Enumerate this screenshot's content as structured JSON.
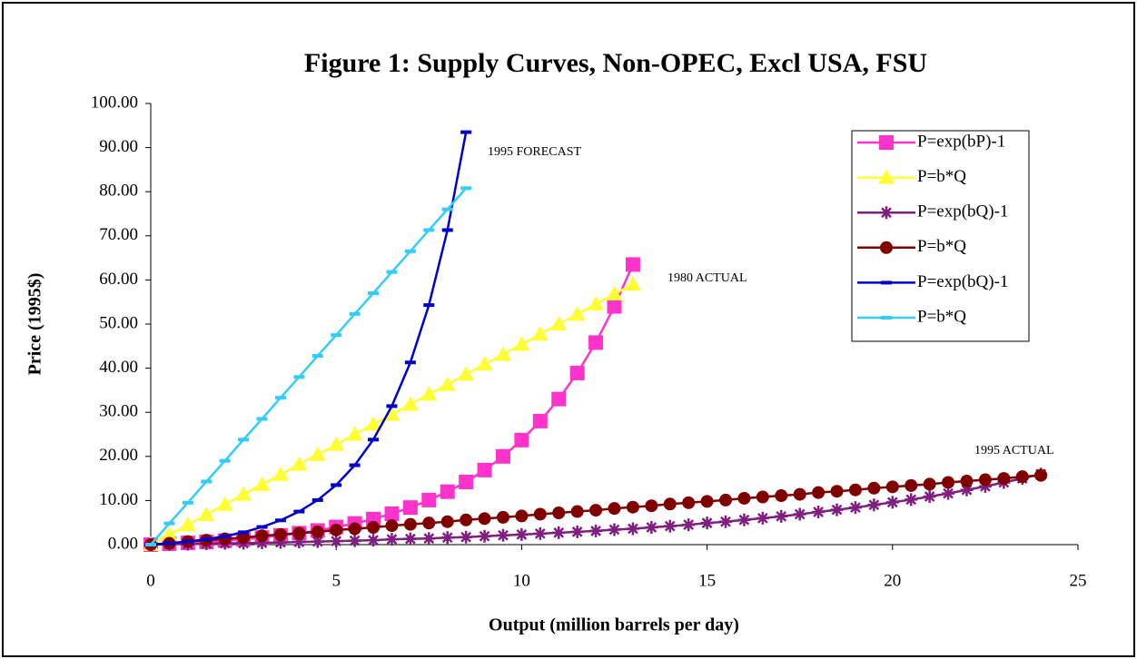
{
  "chart_data": {
    "type": "line",
    "title": "Figure 1: Supply Curves, Non-OPEC, Excl USA, FSU",
    "x_label": "Output (million barrels per day)",
    "y_label": "Price (1995$)",
    "xlim": [
      0,
      25
    ],
    "ylim": [
      0,
      100
    ],
    "xticks": [
      0,
      5,
      10,
      15,
      20,
      25
    ],
    "yticks": [
      {
        "value": 0,
        "label": "0.00"
      },
      {
        "value": 10,
        "label": "10.00"
      },
      {
        "value": 20,
        "label": "20.00"
      },
      {
        "value": 30,
        "label": "30.00"
      },
      {
        "value": 40,
        "label": "40.00"
      },
      {
        "value": 50,
        "label": "50.00"
      },
      {
        "value": 60,
        "label": "60.00"
      },
      {
        "value": 70,
        "label": "70.00"
      },
      {
        "value": 80,
        "label": "80.00"
      },
      {
        "value": 90,
        "label": "90.00"
      },
      {
        "value": 100,
        "label": "100.00"
      }
    ],
    "annotations": [
      "1995 FORECAST",
      "1980 ACTUAL",
      "1995 ACTUAL"
    ],
    "series": [
      {
        "name": "P=exp(bP)-1",
        "color": "#ff33cc",
        "marker": "square",
        "x": [
          0,
          0.5,
          1,
          1.5,
          2,
          2.5,
          3,
          3.5,
          4,
          4.5,
          5,
          5.5,
          6,
          6.5,
          7,
          7.5,
          8,
          8.5,
          9,
          9.5,
          10,
          10.5,
          11,
          11.5,
          12,
          12.5,
          13
        ],
        "values": [
          0,
          0.2,
          0.4,
          0.6,
          0.9,
          1.2,
          1.6,
          2.1,
          2.6,
          3.2,
          4.0,
          4.8,
          5.8,
          7.0,
          8.4,
          10.1,
          12.0,
          14.2,
          16.9,
          20.0,
          23.7,
          28.0,
          33.0,
          38.9,
          45.8,
          54.0,
          63.5
        ]
      },
      {
        "name": "P=b*Q",
        "color": "#ffff33",
        "marker": "triangle",
        "x": [
          0,
          0.5,
          1,
          1.5,
          2,
          2.5,
          3,
          3.5,
          4,
          4.5,
          5,
          5.5,
          6,
          6.5,
          7,
          7.5,
          8,
          8.5,
          9,
          9.5,
          10,
          10.5,
          11,
          11.5,
          12,
          12.5,
          13
        ],
        "values": [
          0,
          2.3,
          4.5,
          6.8,
          9.1,
          11.4,
          13.6,
          15.9,
          18.2,
          20.4,
          22.7,
          25.0,
          27.3,
          29.5,
          31.8,
          34.1,
          36.3,
          38.6,
          40.9,
          43.1,
          45.4,
          47.7,
          50.0,
          52.2,
          54.5,
          56.8,
          59.0
        ]
      },
      {
        "name": "P=exp(bQ)-1",
        "color": "#7f1f7f",
        "marker": "asterisk",
        "x": [
          0,
          0.5,
          1,
          1.5,
          2,
          2.5,
          3,
          3.5,
          4,
          4.5,
          5,
          5.5,
          6,
          6.5,
          7,
          7.5,
          8,
          8.5,
          9,
          9.5,
          10,
          10.5,
          11,
          11.5,
          12,
          12.5,
          13,
          13.5,
          14,
          14.5,
          15,
          15.5,
          16,
          16.5,
          17,
          17.5,
          18,
          18.5,
          19,
          19.5,
          20,
          20.5,
          21,
          21.5,
          22,
          22.5,
          23,
          23.5,
          24
        ],
        "values": [
          0,
          0.1,
          0.1,
          0.2,
          0.3,
          0.3,
          0.4,
          0.5,
          0.6,
          0.7,
          0.8,
          0.9,
          1.0,
          1.2,
          1.3,
          1.4,
          1.6,
          1.7,
          1.9,
          2.1,
          2.3,
          2.5,
          2.7,
          2.9,
          3.1,
          3.4,
          3.6,
          3.9,
          4.2,
          4.5,
          4.9,
          5.2,
          5.6,
          6.0,
          6.4,
          6.9,
          7.4,
          7.9,
          8.4,
          9.0,
          9.6,
          10.2,
          10.9,
          11.6,
          12.4,
          13.2,
          14.1,
          15.0,
          16.0
        ]
      },
      {
        "name": "P=b*Q",
        "color": "#800000",
        "marker": "circle",
        "x": [
          0,
          0.5,
          1,
          1.5,
          2,
          2.5,
          3,
          3.5,
          4,
          4.5,
          5,
          5.5,
          6,
          6.5,
          7,
          7.5,
          8,
          8.5,
          9,
          9.5,
          10,
          10.5,
          11,
          11.5,
          12,
          12.5,
          13,
          13.5,
          14,
          14.5,
          15,
          15.5,
          16,
          16.5,
          17,
          17.5,
          18,
          18.5,
          19,
          19.5,
          20,
          20.5,
          21,
          21.5,
          22,
          22.5,
          23,
          23.5,
          24
        ],
        "values": [
          0,
          0.3,
          0.7,
          1.0,
          1.3,
          1.6,
          2.0,
          2.3,
          2.6,
          2.9,
          3.3,
          3.6,
          3.9,
          4.3,
          4.6,
          4.9,
          5.2,
          5.6,
          5.9,
          6.2,
          6.5,
          6.9,
          7.2,
          7.5,
          7.8,
          8.2,
          8.5,
          8.8,
          9.2,
          9.5,
          9.8,
          10.1,
          10.5,
          10.8,
          11.1,
          11.4,
          11.8,
          12.1,
          12.4,
          12.8,
          13.1,
          13.4,
          13.7,
          14.1,
          14.4,
          14.7,
          15.0,
          15.4,
          15.7
        ]
      },
      {
        "name": "P=exp(bQ)-1",
        "color": "#0000cc",
        "marker": "dash",
        "x": [
          0,
          0.5,
          1,
          1.5,
          2,
          2.5,
          3,
          3.5,
          4,
          4.5,
          5,
          5.5,
          6,
          6.5,
          7,
          7.5,
          8,
          8.5
        ],
        "values": [
          0,
          0.3,
          0.7,
          1.2,
          1.9,
          2.8,
          4.0,
          5.5,
          7.5,
          10.1,
          13.5,
          18.0,
          23.8,
          31.4,
          41.3,
          54.3,
          71.3,
          93.5
        ]
      },
      {
        "name": "P=b*Q",
        "color": "#33ccff",
        "marker": "dash",
        "x": [
          0,
          0.5,
          1,
          1.5,
          2,
          2.5,
          3,
          3.5,
          4,
          4.5,
          5,
          5.5,
          6,
          6.5,
          7,
          7.5,
          8,
          8.5
        ],
        "values": [
          0,
          4.8,
          9.5,
          14.3,
          19,
          23.8,
          28.5,
          33.3,
          38,
          42.8,
          47.5,
          52.3,
          57,
          61.8,
          66.5,
          71.3,
          76,
          80.8
        ]
      }
    ]
  }
}
